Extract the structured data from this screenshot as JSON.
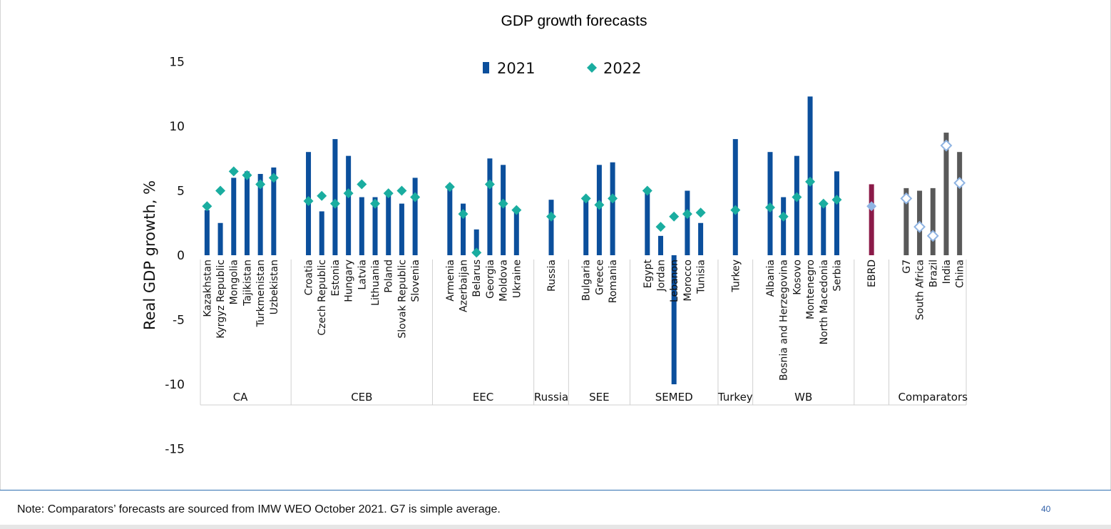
{
  "footer": {
    "note": "Note: Comparators’ forecasts are sourced from IMW WEO October 2021. G7 is simple average.",
    "page_number": "40"
  },
  "colors": {
    "bar_2021": "#0b4f9c",
    "marker_2022": "#1aada0",
    "ebrd_bar": "#8b1a48",
    "ebrd_marker": "#8fb4e3",
    "comparator_bar": "#595959",
    "comparator_marker_fill": "#ffffff",
    "comparator_marker_stroke": "#8fb4e3",
    "separator": "#d0d0d0",
    "footer_rule": "#2f6fb0"
  },
  "chart_data": {
    "type": "bar",
    "title": "GDP growth forecasts",
    "ylabel": "Real GDP growth, %",
    "xlabel": "",
    "ylim": [
      -15,
      15
    ],
    "yticks": [
      15,
      10,
      5,
      0,
      -5,
      -10,
      -15
    ],
    "grid": false,
    "legend_position": "top-center",
    "legend": [
      {
        "name": "2021",
        "marker": "bar"
      },
      {
        "name": "2022",
        "marker": "diamond"
      }
    ],
    "groups": [
      {
        "name": "CA",
        "items": [
          {
            "country": "Kazakhstan",
            "y2021": 3.5,
            "y2022": 3.8
          },
          {
            "country": "Kyrgyz Republic",
            "y2021": 2.5,
            "y2022": 5.0
          },
          {
            "country": "Mongolia",
            "y2021": 6.0,
            "y2022": 6.5
          },
          {
            "country": "Tajikistan",
            "y2021": 6.5,
            "y2022": 6.2
          },
          {
            "country": "Turkmenistan",
            "y2021": 6.3,
            "y2022": 5.5
          },
          {
            "country": "Uzbekistan",
            "y2021": 6.8,
            "y2022": 6.0
          }
        ]
      },
      {
        "name": "CEB",
        "items": [
          {
            "country": "Croatia",
            "y2021": 8.0,
            "y2022": 4.2
          },
          {
            "country": "Czech Republic",
            "y2021": 3.4,
            "y2022": 4.6
          },
          {
            "country": "Estonia",
            "y2021": 9.0,
            "y2022": 4.0
          },
          {
            "country": "Hungary",
            "y2021": 7.7,
            "y2022": 4.8
          },
          {
            "country": "Latvia",
            "y2021": 4.5,
            "y2022": 5.5
          },
          {
            "country": "Lithuania",
            "y2021": 4.5,
            "y2022": 4.0
          },
          {
            "country": "Poland",
            "y2021": 5.0,
            "y2022": 4.8
          },
          {
            "country": "Slovak Republic",
            "y2021": 4.0,
            "y2022": 5.0
          },
          {
            "country": "Slovenia",
            "y2021": 6.0,
            "y2022": 4.5
          }
        ]
      },
      {
        "name": "EEC",
        "items": [
          {
            "country": "Armenia",
            "y2021": 5.5,
            "y2022": 5.3
          },
          {
            "country": "Azerbaijan",
            "y2021": 4.0,
            "y2022": 3.2
          },
          {
            "country": "Belarus",
            "y2021": 2.0,
            "y2022": 0.2
          },
          {
            "country": "Georgia",
            "y2021": 7.5,
            "y2022": 5.5
          },
          {
            "country": "Moldova",
            "y2021": 7.0,
            "y2022": 4.0
          },
          {
            "country": "Ukraine",
            "y2021": 3.5,
            "y2022": 3.5
          }
        ]
      },
      {
        "name": "Russia",
        "items": [
          {
            "country": "Russia",
            "y2021": 4.3,
            "y2022": 3.0
          }
        ]
      },
      {
        "name": "SEE",
        "items": [
          {
            "country": "Bulgaria",
            "y2021": 4.5,
            "y2022": 4.4
          },
          {
            "country": "Greece",
            "y2021": 7.0,
            "y2022": 3.9
          },
          {
            "country": "Romania",
            "y2021": 7.2,
            "y2022": 4.4
          }
        ]
      },
      {
        "name": "SEMED",
        "items": [
          {
            "country": "Egypt",
            "y2021": 5.0,
            "y2022": 5.0
          },
          {
            "country": "Jordan",
            "y2021": 1.5,
            "y2022": 2.2
          },
          {
            "country": "Lebanon",
            "y2021": -10.0,
            "y2022": 3.0
          },
          {
            "country": "Morocco",
            "y2021": 5.0,
            "y2022": 3.2
          },
          {
            "country": "Tunisia",
            "y2021": 2.5,
            "y2022": 3.3
          }
        ]
      },
      {
        "name": "Turkey",
        "items": [
          {
            "country": "Turkey",
            "y2021": 9.0,
            "y2022": 3.5
          }
        ]
      },
      {
        "name": "WB",
        "items": [
          {
            "country": "Albania",
            "y2021": 8.0,
            "y2022": 3.7
          },
          {
            "country": "Bosnia and Herzegovina",
            "y2021": 4.5,
            "y2022": 3.0
          },
          {
            "country": "Kosovo",
            "y2021": 7.7,
            "y2022": 4.5
          },
          {
            "country": "Montenegro",
            "y2021": 12.3,
            "y2022": 5.7
          },
          {
            "country": "North Macedonia",
            "y2021": 4.0,
            "y2022": 4.0
          },
          {
            "country": "Serbia",
            "y2021": 6.5,
            "y2022": 4.3
          }
        ]
      },
      {
        "name": "",
        "items": [
          {
            "country": "EBRD",
            "y2021": 5.5,
            "y2022": 3.8,
            "style": "ebrd"
          }
        ]
      },
      {
        "name": "Comparators",
        "items": [
          {
            "country": "G7",
            "y2021": 5.2,
            "y2022": 4.4,
            "style": "comparator"
          },
          {
            "country": "South Africa",
            "y2021": 5.0,
            "y2022": 2.2,
            "style": "comparator"
          },
          {
            "country": "Brazil",
            "y2021": 5.2,
            "y2022": 1.5,
            "style": "comparator"
          },
          {
            "country": "India",
            "y2021": 9.5,
            "y2022": 8.5,
            "style": "comparator"
          },
          {
            "country": "China",
            "y2021": 8.0,
            "y2022": 5.6,
            "style": "comparator"
          }
        ]
      }
    ]
  }
}
